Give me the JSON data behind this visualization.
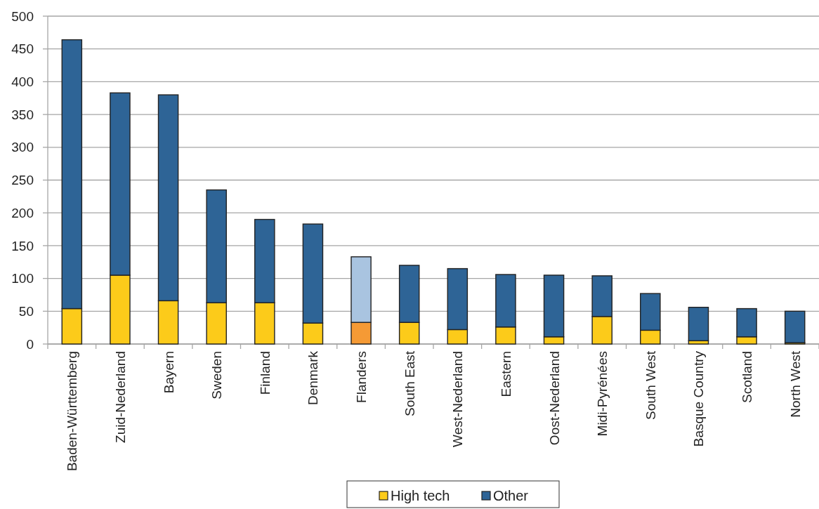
{
  "chart_data": {
    "type": "bar",
    "stacked": true,
    "categories": [
      "Baden-Württemberg",
      "Zuid-Nederland",
      "Bayern",
      "Sweden",
      "Finland",
      "Denmark",
      "Flanders",
      "South East",
      "West-Nederland",
      "Eastern",
      "Oost-Nederland",
      "Midi-Pyrénées",
      "South West",
      "Basque Country",
      "Scotland",
      "North West"
    ],
    "series": [
      {
        "name": "High tech",
        "color": "#fccb1a",
        "colors": [
          "#fccb1a",
          "#fccb1a",
          "#fccb1a",
          "#fccb1a",
          "#fccb1a",
          "#fccb1a",
          "#f59a35",
          "#fccb1a",
          "#fccb1a",
          "#fccb1a",
          "#fccb1a",
          "#fccb1a",
          "#fccb1a",
          "#fccb1a",
          "#fccb1a",
          "#fccb1a"
        ],
        "values": [
          54,
          105,
          66,
          63,
          63,
          32,
          33,
          33,
          22,
          26,
          11,
          42,
          21,
          5,
          11,
          2
        ]
      },
      {
        "name": "Other",
        "color": "#2e6496",
        "colors": [
          "#2e6496",
          "#2e6496",
          "#2e6496",
          "#2e6496",
          "#2e6496",
          "#2e6496",
          "#a9c4e0",
          "#2e6496",
          "#2e6496",
          "#2e6496",
          "#2e6496",
          "#2e6496",
          "#2e6496",
          "#2e6496",
          "#2e6496",
          "#2e6496"
        ],
        "values": [
          410,
          278,
          314,
          172,
          127,
          151,
          100,
          87,
          93,
          80,
          94,
          62,
          56,
          51,
          43,
          48
        ]
      }
    ],
    "ylim": [
      0,
      500
    ],
    "yticks": [
      0,
      50,
      100,
      150,
      200,
      250,
      300,
      350,
      400,
      450,
      500
    ],
    "grid": "y",
    "legend": "bottom"
  }
}
